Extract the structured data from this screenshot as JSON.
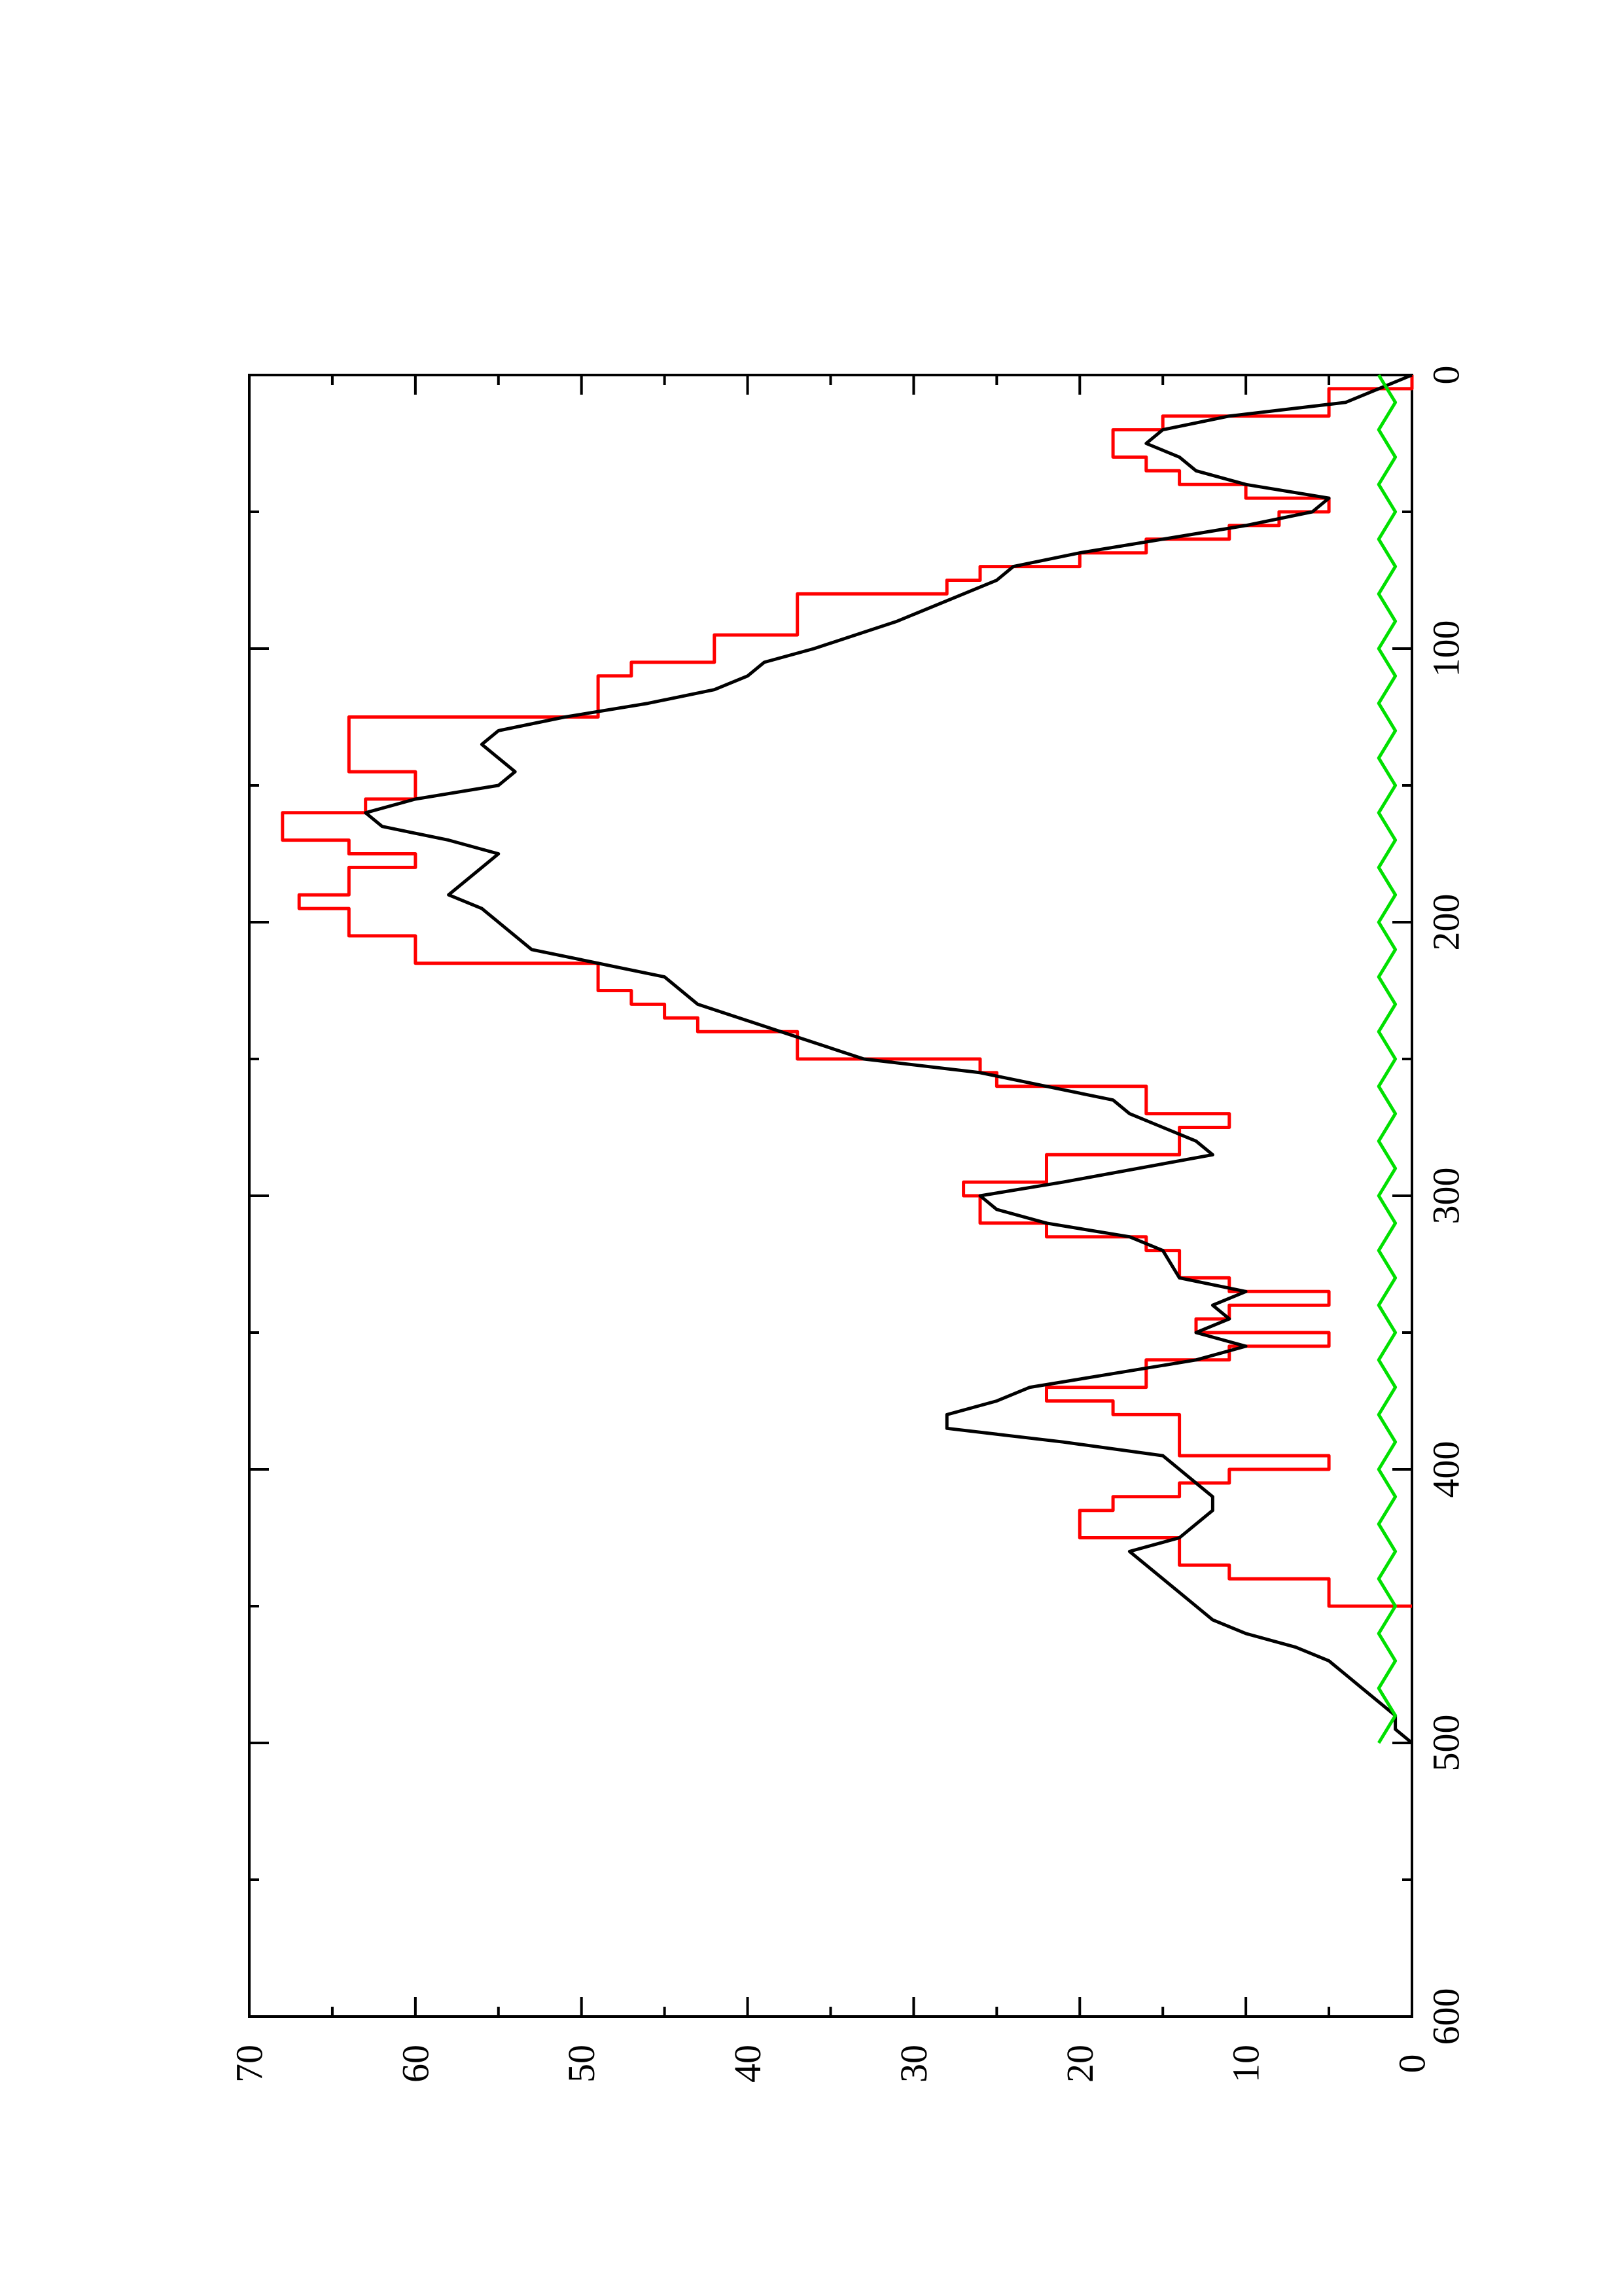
{
  "chart_data": {
    "type": "line",
    "orientation": "rotated-90-ccw",
    "title": "",
    "xlabel": "",
    "ylabel": "",
    "xlim": [
      0,
      600
    ],
    "ylim": [
      0,
      70
    ],
    "x_ticks": [
      0,
      100,
      200,
      300,
      400,
      500,
      600
    ],
    "y_ticks": [
      0,
      10,
      20,
      30,
      40,
      50,
      60,
      70
    ],
    "x_tick_labels": [
      "0",
      "100",
      "200",
      "300",
      "400",
      "500",
      "600"
    ],
    "y_tick_labels": [
      "0",
      "10",
      "20",
      "30",
      "40",
      "50",
      "60",
      "70"
    ],
    "grid": false,
    "legend": "none",
    "series": [
      {
        "color": "#ff0000",
        "style": "step",
        "points": [
          [
            0,
            0
          ],
          [
            5,
            0
          ],
          [
            5,
            5
          ],
          [
            15,
            5
          ],
          [
            15,
            15
          ],
          [
            20,
            15
          ],
          [
            20,
            18
          ],
          [
            30,
            18
          ],
          [
            30,
            16
          ],
          [
            35,
            16
          ],
          [
            35,
            14
          ],
          [
            40,
            14
          ],
          [
            40,
            10
          ],
          [
            45,
            10
          ],
          [
            45,
            5
          ],
          [
            50,
            5
          ],
          [
            50,
            8
          ],
          [
            55,
            8
          ],
          [
            55,
            11
          ],
          [
            60,
            11
          ],
          [
            60,
            16
          ],
          [
            65,
            16
          ],
          [
            65,
            20
          ],
          [
            70,
            20
          ],
          [
            70,
            26
          ],
          [
            75,
            26
          ],
          [
            75,
            28
          ],
          [
            80,
            28
          ],
          [
            80,
            37
          ],
          [
            95,
            37
          ],
          [
            95,
            42
          ],
          [
            105,
            42
          ],
          [
            105,
            47
          ],
          [
            110,
            47
          ],
          [
            110,
            49
          ],
          [
            125,
            49
          ],
          [
            125,
            64
          ],
          [
            145,
            64
          ],
          [
            145,
            60
          ],
          [
            155,
            60
          ],
          [
            155,
            63
          ],
          [
            160,
            63
          ],
          [
            160,
            68
          ],
          [
            170,
            68
          ],
          [
            170,
            64
          ],
          [
            175,
            64
          ],
          [
            175,
            60
          ],
          [
            180,
            60
          ],
          [
            180,
            64
          ],
          [
            190,
            64
          ],
          [
            190,
            67
          ],
          [
            195,
            67
          ],
          [
            195,
            64
          ],
          [
            205,
            64
          ],
          [
            205,
            60
          ],
          [
            215,
            60
          ],
          [
            215,
            49
          ],
          [
            225,
            49
          ],
          [
            225,
            47
          ],
          [
            230,
            47
          ],
          [
            230,
            45
          ],
          [
            235,
            45
          ],
          [
            235,
            43
          ],
          [
            240,
            43
          ],
          [
            240,
            37
          ],
          [
            250,
            37
          ],
          [
            250,
            26
          ],
          [
            255,
            26
          ],
          [
            255,
            25
          ],
          [
            260,
            25
          ],
          [
            260,
            16
          ],
          [
            270,
            16
          ],
          [
            270,
            11
          ],
          [
            275,
            11
          ],
          [
            275,
            14
          ],
          [
            285,
            14
          ],
          [
            285,
            22
          ],
          [
            295,
            22
          ],
          [
            295,
            27
          ],
          [
            300,
            27
          ],
          [
            300,
            26
          ],
          [
            310,
            26
          ],
          [
            310,
            22
          ],
          [
            315,
            22
          ],
          [
            315,
            16
          ],
          [
            320,
            16
          ],
          [
            320,
            14
          ],
          [
            330,
            14
          ],
          [
            330,
            11
          ],
          [
            335,
            11
          ],
          [
            335,
            5
          ],
          [
            340,
            5
          ],
          [
            340,
            11
          ],
          [
            345,
            11
          ],
          [
            345,
            13
          ],
          [
            350,
            13
          ],
          [
            350,
            5
          ],
          [
            355,
            5
          ],
          [
            355,
            11
          ],
          [
            360,
            11
          ],
          [
            360,
            16
          ],
          [
            370,
            16
          ],
          [
            370,
            22
          ],
          [
            375,
            22
          ],
          [
            375,
            18
          ],
          [
            380,
            18
          ],
          [
            380,
            14
          ],
          [
            395,
            14
          ],
          [
            395,
            5
          ],
          [
            400,
            5
          ],
          [
            400,
            11
          ],
          [
            405,
            11
          ],
          [
            405,
            14
          ],
          [
            410,
            14
          ],
          [
            410,
            18
          ],
          [
            415,
            18
          ],
          [
            415,
            20
          ],
          [
            425,
            20
          ],
          [
            425,
            14
          ],
          [
            435,
            14
          ],
          [
            435,
            11
          ],
          [
            440,
            11
          ],
          [
            440,
            5
          ],
          [
            450,
            5
          ],
          [
            450,
            0
          ]
        ]
      },
      {
        "color": "#000000",
        "style": "line",
        "points": [
          [
            0,
            0
          ],
          [
            5,
            2
          ],
          [
            10,
            4
          ],
          [
            15,
            11
          ],
          [
            20,
            15
          ],
          [
            25,
            16
          ],
          [
            30,
            14
          ],
          [
            35,
            13
          ],
          [
            40,
            10
          ],
          [
            45,
            5
          ],
          [
            50,
            6
          ],
          [
            55,
            10
          ],
          [
            60,
            15
          ],
          [
            65,
            20
          ],
          [
            70,
            24
          ],
          [
            75,
            25
          ],
          [
            80,
            27
          ],
          [
            90,
            31
          ],
          [
            100,
            36
          ],
          [
            105,
            39
          ],
          [
            110,
            40
          ],
          [
            115,
            42
          ],
          [
            120,
            46
          ],
          [
            125,
            51
          ],
          [
            130,
            55
          ],
          [
            135,
            56
          ],
          [
            140,
            55
          ],
          [
            145,
            54
          ],
          [
            150,
            55
          ],
          [
            155,
            60
          ],
          [
            160,
            63
          ],
          [
            165,
            62
          ],
          [
            170,
            58
          ],
          [
            175,
            55
          ],
          [
            180,
            56
          ],
          [
            185,
            57
          ],
          [
            190,
            58
          ],
          [
            195,
            56
          ],
          [
            200,
            55
          ],
          [
            210,
            53
          ],
          [
            220,
            45
          ],
          [
            230,
            43
          ],
          [
            240,
            38
          ],
          [
            250,
            33
          ],
          [
            255,
            26
          ],
          [
            260,
            22
          ],
          [
            265,
            18
          ],
          [
            270,
            17
          ],
          [
            275,
            15
          ],
          [
            280,
            13
          ],
          [
            285,
            12
          ],
          [
            295,
            21
          ],
          [
            300,
            26
          ],
          [
            305,
            25
          ],
          [
            310,
            22
          ],
          [
            315,
            17
          ],
          [
            320,
            15
          ],
          [
            330,
            14
          ],
          [
            335,
            10
          ],
          [
            340,
            12
          ],
          [
            345,
            11
          ],
          [
            350,
            13
          ],
          [
            355,
            10
          ],
          [
            360,
            13
          ],
          [
            365,
            18
          ],
          [
            370,
            23
          ],
          [
            375,
            25
          ],
          [
            380,
            28
          ],
          [
            385,
            28
          ],
          [
            390,
            21
          ],
          [
            395,
            15
          ],
          [
            400,
            14
          ],
          [
            405,
            13
          ],
          [
            410,
            12
          ],
          [
            415,
            12
          ],
          [
            420,
            13
          ],
          [
            425,
            14
          ],
          [
            430,
            17
          ],
          [
            435,
            16
          ],
          [
            440,
            15
          ],
          [
            445,
            14
          ],
          [
            450,
            13
          ],
          [
            455,
            12
          ],
          [
            460,
            10
          ],
          [
            465,
            7
          ],
          [
            470,
            5
          ],
          [
            475,
            4
          ],
          [
            480,
            3
          ],
          [
            485,
            2
          ],
          [
            490,
            1
          ],
          [
            495,
            1
          ],
          [
            500,
            0
          ]
        ]
      },
      {
        "color": "#00e000",
        "style": "noisy",
        "points": [
          [
            0,
            2
          ],
          [
            10,
            1
          ],
          [
            20,
            2
          ],
          [
            30,
            1
          ],
          [
            40,
            2
          ],
          [
            50,
            1
          ],
          [
            60,
            2
          ],
          [
            70,
            1
          ],
          [
            80,
            2
          ],
          [
            90,
            1
          ],
          [
            100,
            2
          ],
          [
            110,
            1
          ],
          [
            120,
            2
          ],
          [
            130,
            1
          ],
          [
            140,
            2
          ],
          [
            150,
            1
          ],
          [
            160,
            2
          ],
          [
            170,
            1
          ],
          [
            180,
            2
          ],
          [
            190,
            1
          ],
          [
            200,
            2
          ],
          [
            210,
            1
          ],
          [
            220,
            2
          ],
          [
            230,
            1
          ],
          [
            240,
            2
          ],
          [
            250,
            1
          ],
          [
            260,
            2
          ],
          [
            270,
            1
          ],
          [
            280,
            2
          ],
          [
            290,
            1
          ],
          [
            300,
            2
          ],
          [
            310,
            1
          ],
          [
            320,
            2
          ],
          [
            330,
            1
          ],
          [
            340,
            2
          ],
          [
            350,
            1
          ],
          [
            360,
            2
          ],
          [
            370,
            1
          ],
          [
            380,
            2
          ],
          [
            390,
            1
          ],
          [
            400,
            2
          ],
          [
            410,
            1
          ],
          [
            420,
            2
          ],
          [
            430,
            1
          ],
          [
            440,
            2
          ],
          [
            450,
            1
          ],
          [
            460,
            2
          ],
          [
            470,
            1
          ],
          [
            480,
            2
          ],
          [
            490,
            1
          ],
          [
            500,
            2
          ]
        ]
      }
    ]
  }
}
